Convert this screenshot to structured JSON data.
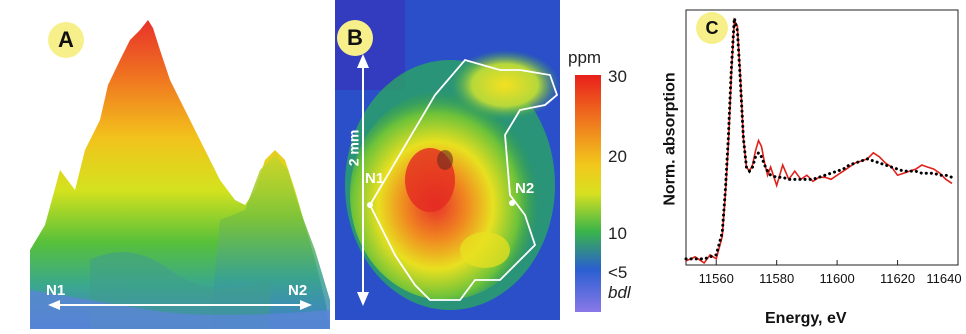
{
  "panel_a": {
    "label": "A",
    "left_marker": "N1",
    "right_marker": "N2"
  },
  "panel_b": {
    "label": "B",
    "scale": "2 mm",
    "left_marker": "N1",
    "right_marker": "N2",
    "colorbar": {
      "unit": "ppm",
      "ticks": [
        "30",
        "20",
        "10",
        "<5"
      ],
      "bottom_label": "bdl"
    }
  },
  "panel_c": {
    "label": "C",
    "ylabel": "Norm. absorption",
    "xlabel": "Energy, eV",
    "xticks": [
      "11560",
      "11580",
      "11600",
      "11620",
      "11640"
    ]
  },
  "chart_data": {
    "type": "line",
    "xlabel": "Energy, eV",
    "ylabel": "Norm. absorption",
    "xlim": [
      11550,
      11640
    ],
    "ylim": [
      0,
      1.25
    ],
    "series": [
      {
        "style": "solid",
        "color": "#e0211c",
        "x": [
          11550,
          11553,
          11556,
          11558,
          11560,
          11562,
          11563,
          11564,
          11565,
          11566,
          11567,
          11568,
          11569,
          11570,
          11571,
          11572,
          11573,
          11574,
          11575,
          11576,
          11577,
          11578,
          11580,
          11582,
          11584,
          11586,
          11588,
          11590,
          11592,
          11594,
          11596,
          11598,
          11600,
          11602,
          11604,
          11606,
          11608,
          11610,
          11612,
          11614,
          11616,
          11618,
          11620,
          11622,
          11624,
          11626,
          11628,
          11630,
          11632,
          11634,
          11636,
          11638
        ],
        "y": [
          0.02,
          0.04,
          0.01,
          0.05,
          0.03,
          0.14,
          0.34,
          0.58,
          0.93,
          1.2,
          1.17,
          0.92,
          0.62,
          0.48,
          0.46,
          0.49,
          0.56,
          0.61,
          0.58,
          0.5,
          0.44,
          0.48,
          0.39,
          0.49,
          0.42,
          0.46,
          0.42,
          0.44,
          0.41,
          0.43,
          0.43,
          0.42,
          0.44,
          0.46,
          0.48,
          0.5,
          0.51,
          0.52,
          0.55,
          0.53,
          0.5,
          0.48,
          0.44,
          0.45,
          0.46,
          0.47,
          0.49,
          0.48,
          0.47,
          0.45,
          0.42,
          0.4
        ]
      },
      {
        "style": "dotted",
        "color": "#000000",
        "x": [
          11550,
          11553,
          11556,
          11558,
          11560,
          11562,
          11563,
          11564,
          11565,
          11566,
          11567,
          11568,
          11569,
          11570,
          11571,
          11572,
          11573,
          11574,
          11575,
          11576,
          11577,
          11578,
          11580,
          11582,
          11584,
          11586,
          11588,
          11590,
          11592,
          11594,
          11596,
          11598,
          11600,
          11602,
          11604,
          11606,
          11608,
          11610,
          11612,
          11614,
          11616,
          11618,
          11620,
          11622,
          11624,
          11626,
          11628,
          11630,
          11632,
          11634,
          11636,
          11638
        ],
        "y": [
          0.03,
          0.03,
          0.03,
          0.04,
          0.05,
          0.16,
          0.36,
          0.62,
          0.96,
          1.21,
          1.15,
          0.9,
          0.62,
          0.48,
          0.46,
          0.48,
          0.53,
          0.55,
          0.53,
          0.49,
          0.46,
          0.44,
          0.43,
          0.43,
          0.42,
          0.42,
          0.42,
          0.42,
          0.42,
          0.43,
          0.44,
          0.45,
          0.46,
          0.47,
          0.49,
          0.5,
          0.51,
          0.52,
          0.51,
          0.5,
          0.49,
          0.48,
          0.47,
          0.46,
          0.46,
          0.46,
          0.45,
          0.45,
          0.45,
          0.44,
          0.44,
          0.43
        ]
      }
    ]
  }
}
